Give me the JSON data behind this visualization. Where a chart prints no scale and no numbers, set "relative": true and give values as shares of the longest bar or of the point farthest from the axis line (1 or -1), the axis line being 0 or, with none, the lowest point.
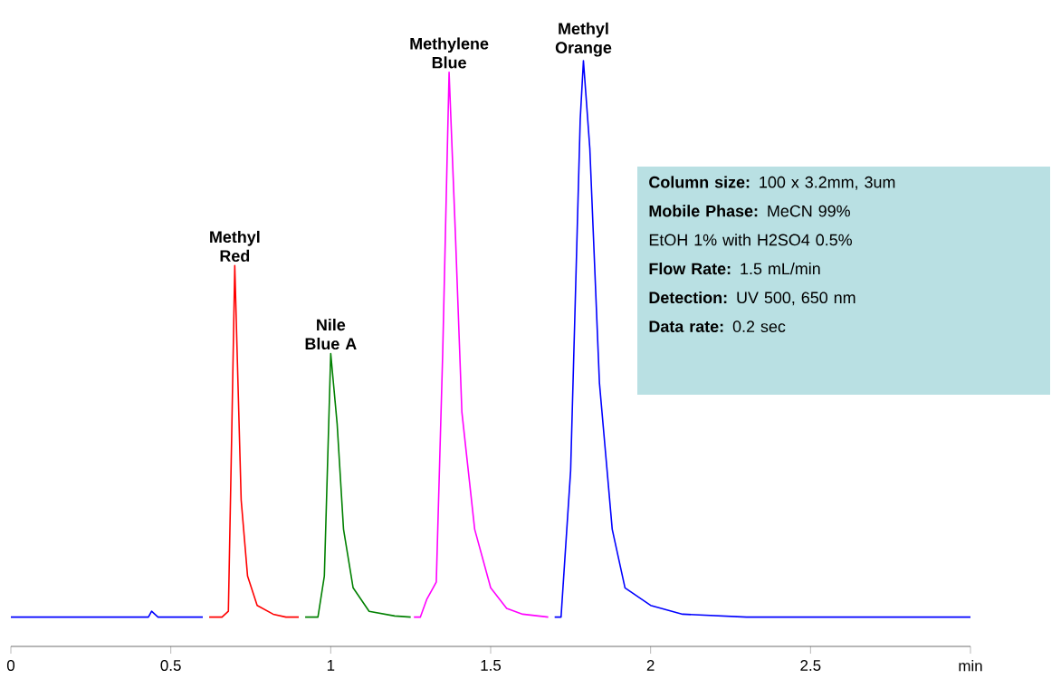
{
  "chart_data": {
    "type": "line",
    "relative": true,
    "xlim": [
      0,
      3
    ],
    "xticks": [
      0,
      0.5,
      1,
      1.5,
      2,
      2.5,
      {
        "value": 3,
        "label": "min"
      }
    ],
    "series": [
      {
        "color": "#ff0000",
        "x": [
          0.62,
          0.66,
          0.68,
          0.69,
          0.7,
          0.71,
          0.72,
          0.74,
          0.77,
          0.82,
          0.86,
          0.9
        ],
        "values": [
          0.05,
          0.05,
          0.06,
          0.35,
          0.65,
          0.45,
          0.25,
          0.12,
          0.07,
          0.055,
          0.05,
          0.05
        ]
      },
      {
        "color": "#008000",
        "x": [
          0.92,
          0.96,
          0.98,
          1.0,
          1.02,
          1.04,
          1.07,
          1.12,
          1.2,
          1.25
        ],
        "values": [
          0.05,
          0.05,
          0.12,
          0.5,
          0.38,
          0.2,
          0.1,
          0.06,
          0.052,
          0.05
        ]
      },
      {
        "color": "#ff00ff",
        "x": [
          1.26,
          1.28,
          1.3,
          1.32,
          1.33,
          1.35,
          1.37,
          1.39,
          1.41,
          1.45,
          1.5,
          1.55,
          1.6,
          1.68
        ],
        "values": [
          0.05,
          0.05,
          0.08,
          0.1,
          0.11,
          0.5,
          0.98,
          0.7,
          0.4,
          0.2,
          0.1,
          0.065,
          0.055,
          0.05
        ]
      },
      {
        "color": "#0000ff",
        "x": [
          0,
          0.43,
          0.44,
          0.46,
          0.6,
          1.0,
          1.7,
          1.72,
          1.75,
          1.78,
          1.79,
          1.81,
          1.84,
          1.88,
          1.92,
          2.0,
          2.1,
          2.3,
          3
        ],
        "values": [
          0.05,
          0.05,
          0.06,
          0.05,
          0.05,
          null,
          0.05,
          0.05,
          0.3,
          0.9,
          1,
          0.85,
          0.45,
          0.2,
          0.1,
          0.07,
          0.055,
          0.05,
          0.05
        ]
      }
    ],
    "annotations": [
      {
        "text": "Methyl Red",
        "x": 0.7,
        "y": 0.65
      },
      {
        "text": "Nile Blue A",
        "x": 1.0,
        "y": 0.5
      },
      {
        "text": "Methylene Blue",
        "x": 1.37,
        "y": 0.98
      },
      {
        "text": "Methyl Orange",
        "x": 1.79,
        "y": 1
      },
      "**Column size:** 100 x  3.2mm, 3um",
      "**Mobile Phase:** MeCN 99%",
      " EtOH 1% with H2SO4 0.5%",
      "**Flow Rate:** 1.5 mL/min",
      "**Detection:** UV 500, 650 nm",
      "**Data rate:** 0.2 sec"
    ]
  }
}
